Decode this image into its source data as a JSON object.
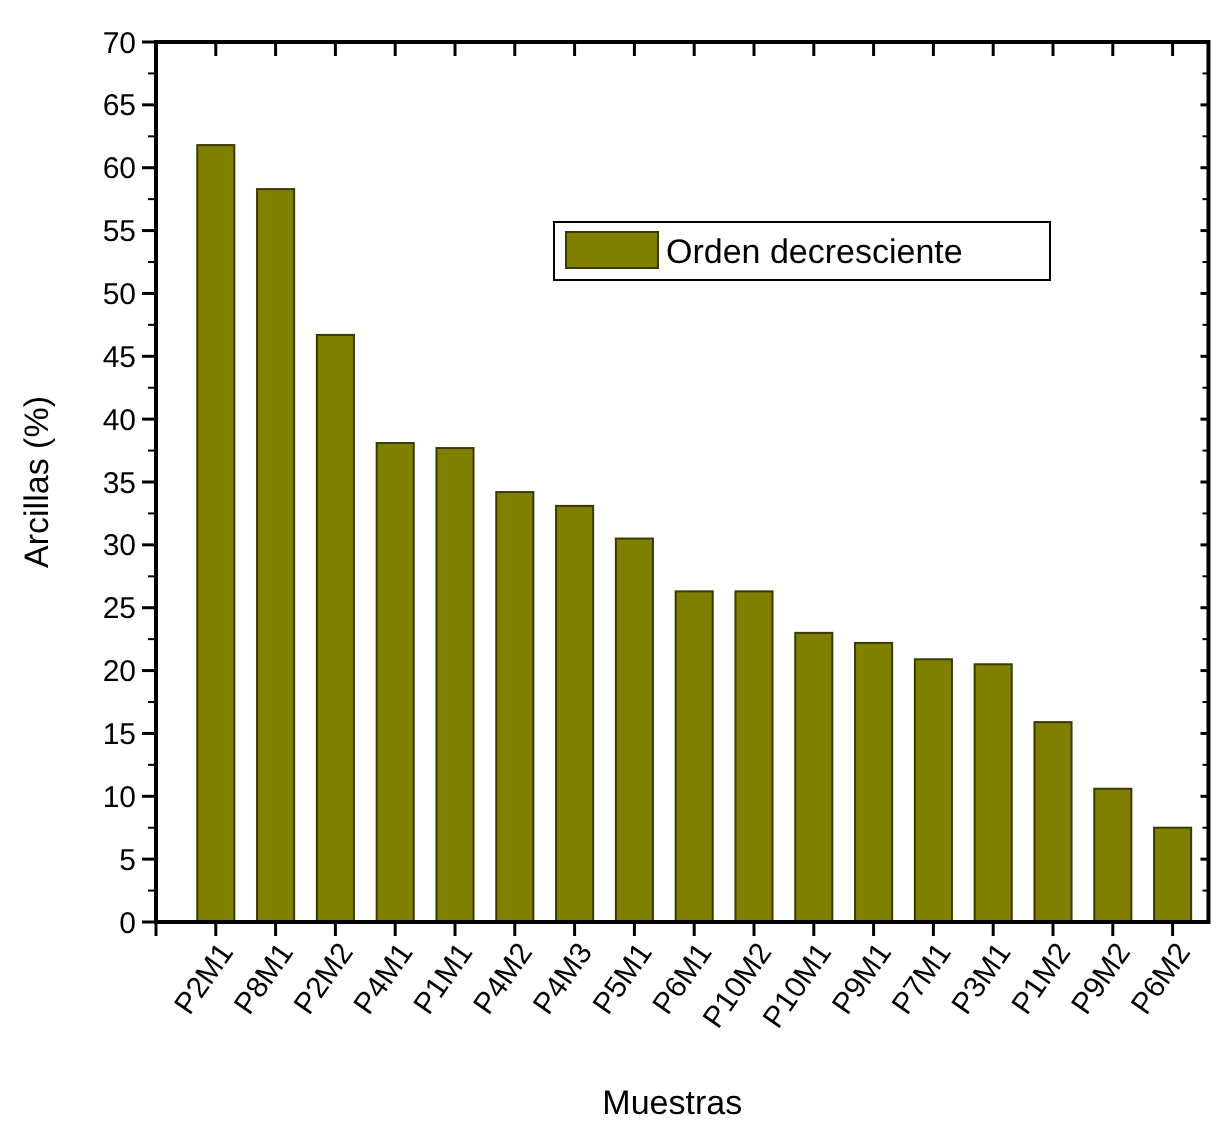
{
  "chart_data": {
    "type": "bar",
    "xlabel": "Muestras",
    "ylabel": "Arcillas (%)",
    "categories": [
      "P2M1",
      "P8M1",
      "P2M2",
      "P4M1",
      "P1M1",
      "P4M2",
      "P4M3",
      "P5M1",
      "P6M1",
      "P10M2",
      "P10M1",
      "P9M1",
      "P7M1",
      "P3M1",
      "P1M2",
      "P9M2",
      "P6M2"
    ],
    "series": [
      {
        "name": "Orden decresciente",
        "color": "#808000",
        "values": [
          61.8,
          58.3,
          46.7,
          38.1,
          37.7,
          34.2,
          33.1,
          30.5,
          26.3,
          26.3,
          23.0,
          22.2,
          20.9,
          20.5,
          15.9,
          10.6,
          7.5
        ]
      }
    ],
    "ylim": [
      0,
      70
    ],
    "yticks": [
      0,
      5,
      10,
      15,
      20,
      25,
      30,
      35,
      40,
      45,
      50,
      55,
      60,
      65,
      70
    ],
    "legend": "top right",
    "grid": false
  }
}
